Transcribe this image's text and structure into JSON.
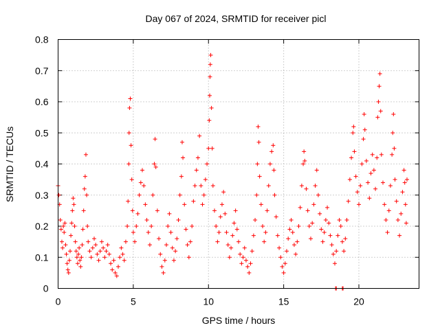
{
  "chart_data": {
    "type": "scatter",
    "title": "Day 067 of 2024, SRMTID for receiver picl",
    "xlabel": "GPS time / hours",
    "ylabel": "SRMTID / TECUs",
    "xlim": [
      0,
      24
    ],
    "ylim": [
      0,
      0.8
    ],
    "xticks": [
      0,
      5,
      10,
      15,
      20
    ],
    "yticks": [
      0,
      0.1,
      0.2,
      0.3,
      0.4,
      0.5,
      0.6,
      0.7,
      0.8
    ],
    "grid": true,
    "marker": "plus",
    "point_color": "#ff0000",
    "series": [
      {
        "name": "SRMTID",
        "points": [
          [
            0.0,
            0.33
          ],
          [
            0.05,
            0.3
          ],
          [
            0.1,
            0.27
          ],
          [
            0.15,
            0.22
          ],
          [
            0.2,
            0.19
          ],
          [
            0.25,
            0.15
          ],
          [
            0.3,
            0.13
          ],
          [
            0.35,
            0.2
          ],
          [
            0.4,
            0.18
          ],
          [
            0.45,
            0.21
          ],
          [
            0.5,
            0.14
          ],
          [
            0.55,
            0.11
          ],
          [
            0.6,
            0.08
          ],
          [
            0.65,
            0.06
          ],
          [
            0.7,
            0.05
          ],
          [
            0.75,
            0.09
          ],
          [
            0.8,
            0.12
          ],
          [
            0.85,
            0.17
          ],
          [
            0.9,
            0.21
          ],
          [
            0.95,
            0.25
          ],
          [
            1.0,
            0.29
          ],
          [
            1.05,
            0.27
          ],
          [
            1.1,
            0.2
          ],
          [
            1.15,
            0.15
          ],
          [
            1.2,
            0.12
          ],
          [
            1.25,
            0.1
          ],
          [
            1.3,
            0.08
          ],
          [
            1.35,
            0.11
          ],
          [
            1.4,
            0.13
          ],
          [
            1.45,
            0.09
          ],
          [
            1.5,
            0.07
          ],
          [
            1.55,
            0.1
          ],
          [
            1.6,
            0.14
          ],
          [
            1.65,
            0.19
          ],
          [
            1.7,
            0.25
          ],
          [
            1.75,
            0.32
          ],
          [
            1.8,
            0.36
          ],
          [
            1.85,
            0.43
          ],
          [
            1.9,
            0.3
          ],
          [
            1.95,
            0.2
          ],
          [
            2.0,
            0.15
          ],
          [
            2.1,
            0.12
          ],
          [
            2.2,
            0.1
          ],
          [
            2.3,
            0.13
          ],
          [
            2.4,
            0.16
          ],
          [
            2.5,
            0.14
          ],
          [
            2.6,
            0.11
          ],
          [
            2.7,
            0.09
          ],
          [
            2.8,
            0.12
          ],
          [
            2.9,
            0.15
          ],
          [
            3.0,
            0.13
          ],
          [
            3.1,
            0.1
          ],
          [
            3.2,
            0.12
          ],
          [
            3.3,
            0.14
          ],
          [
            3.4,
            0.11
          ],
          [
            3.5,
            0.08
          ],
          [
            3.6,
            0.06
          ],
          [
            3.7,
            0.09
          ],
          [
            3.8,
            0.05
          ],
          [
            3.9,
            0.04
          ],
          [
            4.0,
            0.07
          ],
          [
            4.1,
            0.1
          ],
          [
            4.2,
            0.13
          ],
          [
            4.3,
            0.11
          ],
          [
            4.4,
            0.09
          ],
          [
            4.5,
            0.15
          ],
          [
            4.6,
            0.2
          ],
          [
            4.65,
            0.28
          ],
          [
            4.7,
            0.4
          ],
          [
            4.72,
            0.5
          ],
          [
            4.75,
            0.58
          ],
          [
            4.8,
            0.61
          ],
          [
            4.85,
            0.46
          ],
          [
            4.9,
            0.35
          ],
          [
            4.95,
            0.25
          ],
          [
            5.0,
            0.18
          ],
          [
            5.1,
            0.15
          ],
          [
            5.2,
            0.2
          ],
          [
            5.3,
            0.24
          ],
          [
            5.4,
            0.3
          ],
          [
            5.5,
            0.34
          ],
          [
            5.6,
            0.38
          ],
          [
            5.7,
            0.33
          ],
          [
            5.8,
            0.27
          ],
          [
            5.9,
            0.22
          ],
          [
            6.0,
            0.18
          ],
          [
            6.1,
            0.14
          ],
          [
            6.2,
            0.2
          ],
          [
            6.3,
            0.3
          ],
          [
            6.4,
            0.4
          ],
          [
            6.45,
            0.48
          ],
          [
            6.5,
            0.39
          ],
          [
            6.6,
            0.25
          ],
          [
            6.7,
            0.16
          ],
          [
            6.8,
            0.11
          ],
          [
            6.9,
            0.07
          ],
          [
            7.0,
            0.05
          ],
          [
            7.1,
            0.09
          ],
          [
            7.2,
            0.14
          ],
          [
            7.3,
            0.2
          ],
          [
            7.4,
            0.24
          ],
          [
            7.5,
            0.18
          ],
          [
            7.6,
            0.13
          ],
          [
            7.7,
            0.09
          ],
          [
            7.8,
            0.12
          ],
          [
            7.9,
            0.16
          ],
          [
            8.0,
            0.22
          ],
          [
            8.1,
            0.3
          ],
          [
            8.2,
            0.36
          ],
          [
            8.25,
            0.47
          ],
          [
            8.3,
            0.42
          ],
          [
            8.4,
            0.27
          ],
          [
            8.5,
            0.19
          ],
          [
            8.6,
            0.14
          ],
          [
            8.7,
            0.1
          ],
          [
            8.8,
            0.15
          ],
          [
            8.9,
            0.2
          ],
          [
            9.0,
            0.28
          ],
          [
            9.1,
            0.33
          ],
          [
            9.2,
            0.38
          ],
          [
            9.3,
            0.42
          ],
          [
            9.4,
            0.49
          ],
          [
            9.5,
            0.33
          ],
          [
            9.6,
            0.27
          ],
          [
            9.7,
            0.3
          ],
          [
            9.8,
            0.35
          ],
          [
            9.9,
            0.4
          ],
          [
            10.0,
            0.45
          ],
          [
            10.05,
            0.54
          ],
          [
            10.08,
            0.62
          ],
          [
            10.1,
            0.68
          ],
          [
            10.12,
            0.72
          ],
          [
            10.15,
            0.75
          ],
          [
            10.2,
            0.58
          ],
          [
            10.25,
            0.45
          ],
          [
            10.3,
            0.33
          ],
          [
            10.4,
            0.25
          ],
          [
            10.5,
            0.2
          ],
          [
            10.6,
            0.15
          ],
          [
            10.7,
            0.18
          ],
          [
            10.8,
            0.23
          ],
          [
            10.9,
            0.27
          ],
          [
            11.0,
            0.31
          ],
          [
            11.1,
            0.24
          ],
          [
            11.2,
            0.18
          ],
          [
            11.3,
            0.14
          ],
          [
            11.4,
            0.1
          ],
          [
            11.5,
            0.13
          ],
          [
            11.6,
            0.17
          ],
          [
            11.7,
            0.21
          ],
          [
            11.8,
            0.25
          ],
          [
            11.9,
            0.19
          ],
          [
            12.0,
            0.15
          ],
          [
            12.1,
            0.11
          ],
          [
            12.2,
            0.08
          ],
          [
            12.3,
            0.1
          ],
          [
            12.4,
            0.13
          ],
          [
            12.5,
            0.09
          ],
          [
            12.6,
            0.07
          ],
          [
            12.7,
            0.05
          ],
          [
            12.8,
            0.08
          ],
          [
            12.9,
            0.12
          ],
          [
            13.0,
            0.17
          ],
          [
            13.1,
            0.22
          ],
          [
            13.2,
            0.3
          ],
          [
            13.25,
            0.4
          ],
          [
            13.3,
            0.52
          ],
          [
            13.35,
            0.47
          ],
          [
            13.4,
            0.36
          ],
          [
            13.5,
            0.27
          ],
          [
            13.6,
            0.2
          ],
          [
            13.7,
            0.15
          ],
          [
            13.8,
            0.18
          ],
          [
            13.9,
            0.25
          ],
          [
            14.0,
            0.33
          ],
          [
            14.1,
            0.4
          ],
          [
            14.2,
            0.44
          ],
          [
            14.3,
            0.46
          ],
          [
            14.35,
            0.38
          ],
          [
            14.4,
            0.3
          ],
          [
            14.5,
            0.23
          ],
          [
            14.6,
            0.17
          ],
          [
            14.7,
            0.13
          ],
          [
            14.8,
            0.1
          ],
          [
            14.9,
            0.07
          ],
          [
            15.0,
            0.05
          ],
          [
            15.1,
            0.08
          ],
          [
            15.2,
            0.12
          ],
          [
            15.3,
            0.16
          ],
          [
            15.4,
            0.19
          ],
          [
            15.5,
            0.22
          ],
          [
            15.6,
            0.18
          ],
          [
            15.7,
            0.14
          ],
          [
            15.8,
            0.11
          ],
          [
            15.9,
            0.15
          ],
          [
            16.0,
            0.2
          ],
          [
            16.1,
            0.26
          ],
          [
            16.2,
            0.33
          ],
          [
            16.3,
            0.4
          ],
          [
            16.35,
            0.44
          ],
          [
            16.4,
            0.41
          ],
          [
            16.5,
            0.32
          ],
          [
            16.6,
            0.25
          ],
          [
            16.7,
            0.2
          ],
          [
            16.8,
            0.16
          ],
          [
            16.9,
            0.21
          ],
          [
            17.0,
            0.27
          ],
          [
            17.1,
            0.33
          ],
          [
            17.2,
            0.38
          ],
          [
            17.3,
            0.3
          ],
          [
            17.4,
            0.24
          ],
          [
            17.5,
            0.19
          ],
          [
            17.6,
            0.15
          ],
          [
            17.7,
            0.18
          ],
          [
            17.8,
            0.22
          ],
          [
            17.9,
            0.26
          ],
          [
            18.0,
            0.21
          ],
          [
            18.1,
            0.17
          ],
          [
            18.2,
            0.14
          ],
          [
            18.3,
            0.11
          ],
          [
            18.4,
            0.08
          ],
          [
            18.5,
            0.12
          ],
          [
            18.6,
            0.17
          ],
          [
            18.7,
            0.22
          ],
          [
            18.8,
            0.2
          ],
          [
            18.9,
            0.15
          ],
          [
            19.0,
            0.12
          ],
          [
            19.1,
            0.16
          ],
          [
            19.2,
            0.22
          ],
          [
            19.3,
            0.28
          ],
          [
            19.4,
            0.35
          ],
          [
            19.5,
            0.42
          ],
          [
            19.6,
            0.5
          ],
          [
            19.65,
            0.52
          ],
          [
            19.7,
            0.44
          ],
          [
            19.8,
            0.36
          ],
          [
            19.9,
            0.31
          ],
          [
            20.0,
            0.27
          ],
          [
            20.1,
            0.33
          ],
          [
            20.2,
            0.4
          ],
          [
            20.3,
            0.48
          ],
          [
            20.35,
            0.56
          ],
          [
            20.4,
            0.51
          ],
          [
            20.5,
            0.41
          ],
          [
            20.6,
            0.34
          ],
          [
            20.7,
            0.29
          ],
          [
            20.8,
            0.37
          ],
          [
            20.9,
            0.43
          ],
          [
            21.0,
            0.38
          ],
          [
            21.1,
            0.32
          ],
          [
            21.2,
            0.42
          ],
          [
            21.25,
            0.55
          ],
          [
            21.3,
            0.6
          ],
          [
            21.35,
            0.65
          ],
          [
            21.4,
            0.69
          ],
          [
            21.45,
            0.57
          ],
          [
            21.5,
            0.43
          ],
          [
            21.6,
            0.34
          ],
          [
            21.7,
            0.27
          ],
          [
            21.8,
            0.22
          ],
          [
            21.9,
            0.18
          ],
          [
            22.0,
            0.25
          ],
          [
            22.1,
            0.33
          ],
          [
            22.2,
            0.43
          ],
          [
            22.25,
            0.5
          ],
          [
            22.3,
            0.56
          ],
          [
            22.35,
            0.45
          ],
          [
            22.4,
            0.35
          ],
          [
            22.5,
            0.28
          ],
          [
            22.6,
            0.22
          ],
          [
            22.7,
            0.17
          ],
          [
            22.8,
            0.24
          ],
          [
            22.9,
            0.31
          ],
          [
            23.0,
            0.38
          ],
          [
            23.05,
            0.34
          ],
          [
            23.1,
            0.27
          ],
          [
            23.15,
            0.21
          ],
          [
            23.2,
            0.35
          ],
          [
            18.45,
            0.0
          ],
          [
            18.5,
            0.0
          ],
          [
            18.9,
            0.0
          ],
          [
            18.95,
            0.0
          ]
        ]
      }
    ]
  }
}
